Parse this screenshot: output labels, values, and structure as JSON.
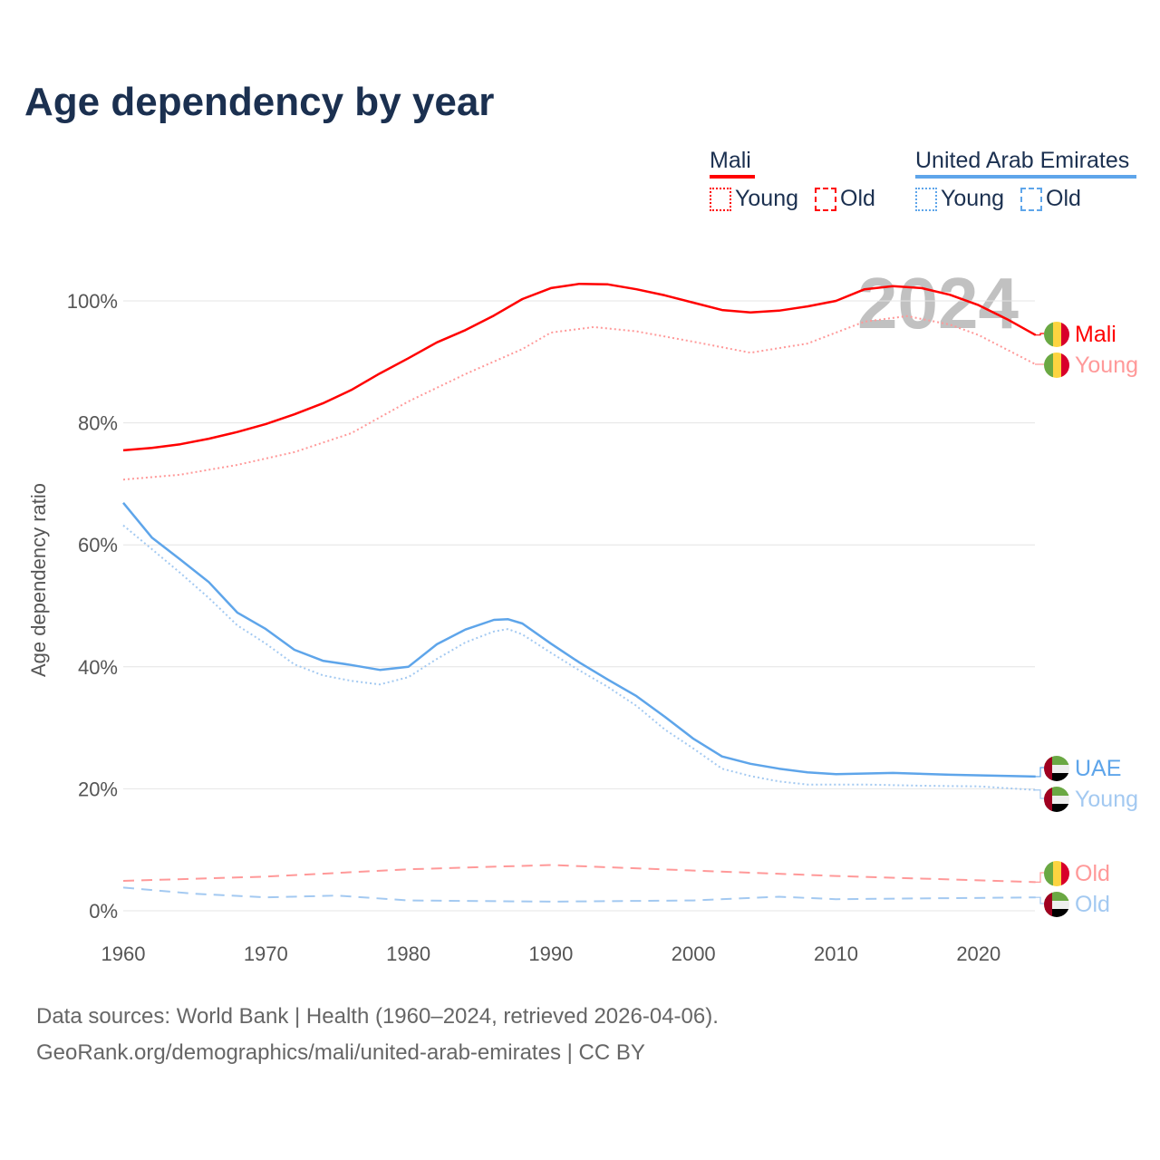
{
  "title": "Age dependency by year",
  "legend": {
    "groups": [
      {
        "name": "Mali",
        "color": "#ff0000",
        "young": "Young",
        "old": "Old"
      },
      {
        "name": "United Arab Emirates",
        "color": "#5ea5ea",
        "young": "Young",
        "old": "Old"
      }
    ]
  },
  "year_watermark": "2024",
  "end_labels": {
    "mali_total": "Mali",
    "mali_young": "Young",
    "mali_old": "Old",
    "uae_total": "UAE",
    "uae_young": "Young",
    "uae_old": "Old"
  },
  "sources": {
    "line1": "Data sources: World Bank | Health (1960–2024, retrieved 2026-04-06).",
    "line2": "GeoRank.org/demographics/mali/united-arab-emirates | CC BY"
  },
  "chart_data": {
    "type": "line",
    "title": "Age dependency by year",
    "xlabel": "",
    "ylabel": "Age dependency ratio",
    "xlim": [
      1960,
      2024
    ],
    "ylim": [
      0,
      110
    ],
    "xticks": [
      "1960",
      "1970",
      "1980",
      "1990",
      "2000",
      "2010",
      "2020"
    ],
    "yticks": [
      "0%",
      "20%",
      "40%",
      "60%",
      "80%",
      "100%"
    ],
    "grid": true,
    "series": [
      {
        "name": "Mali",
        "style": "solid",
        "color": "#ff0000",
        "x": [
          1960,
          1962,
          1964,
          1966,
          1968,
          1970,
          1972,
          1974,
          1976,
          1978,
          1980,
          1982,
          1984,
          1986,
          1988,
          1990,
          1992,
          1994,
          1996,
          1998,
          2000,
          2002,
          2004,
          2006,
          2008,
          2010,
          2012,
          2014,
          2016,
          2018,
          2020,
          2022,
          2024
        ],
        "y": [
          75.5,
          75.9,
          76.5,
          77.4,
          78.5,
          79.8,
          81.4,
          83.2,
          85.4,
          88.1,
          90.6,
          93.2,
          95.2,
          97.6,
          100.3,
          102.1,
          102.8,
          102.7,
          101.9,
          100.9,
          99.7,
          98.5,
          98.1,
          98.4,
          99.1,
          100.0,
          101.9,
          102.4,
          102.1,
          101.0,
          99.3,
          97.0,
          94.4
        ]
      },
      {
        "name": "Mali Young",
        "style": "dotted",
        "color": "#ff9999",
        "x": [
          1960,
          1964,
          1968,
          1972,
          1976,
          1980,
          1984,
          1988,
          1990,
          1993,
          1996,
          2000,
          2004,
          2008,
          2012,
          2015,
          2018,
          2020,
          2024
        ],
        "y": [
          70.7,
          71.5,
          73.1,
          75.2,
          78.3,
          83.5,
          88.0,
          92.1,
          94.8,
          95.7,
          95.0,
          93.3,
          91.5,
          93.0,
          96.6,
          97.5,
          96.1,
          94.4,
          89.6
        ]
      },
      {
        "name": "Mali Old",
        "style": "dashed",
        "color": "#ff9999",
        "x": [
          1960,
          1970,
          1980,
          1990,
          2000,
          2010,
          2020,
          2024
        ],
        "y": [
          4.9,
          5.6,
          6.8,
          7.5,
          6.6,
          5.7,
          5.0,
          4.7
        ]
      },
      {
        "name": "UAE",
        "style": "solid",
        "color": "#5ea5ea",
        "x": [
          1960,
          1962,
          1964,
          1966,
          1968,
          1970,
          1972,
          1974,
          1976,
          1978,
          1980,
          1982,
          1984,
          1986,
          1987,
          1988,
          1990,
          1992,
          1994,
          1996,
          1998,
          2000,
          2002,
          2004,
          2006,
          2008,
          2010,
          2014,
          2018,
          2024
        ],
        "y": [
          66.9,
          61.2,
          57.6,
          53.9,
          48.9,
          46.2,
          42.8,
          41.0,
          40.3,
          39.5,
          40.0,
          43.7,
          46.1,
          47.7,
          47.8,
          47.1,
          43.8,
          40.7,
          37.9,
          35.2,
          31.8,
          28.2,
          25.3,
          24.1,
          23.3,
          22.7,
          22.4,
          22.6,
          22.3,
          22.0
        ]
      },
      {
        "name": "UAE Young",
        "style": "dotted",
        "color": "#a3c9f1",
        "x": [
          1960,
          1962,
          1964,
          1966,
          1968,
          1970,
          1972,
          1974,
          1976,
          1978,
          1980,
          1982,
          1984,
          1986,
          1987,
          1988,
          1990,
          1992,
          1994,
          1996,
          1998,
          2000,
          2002,
          2004,
          2006,
          2008,
          2012,
          2016,
          2020,
          2024
        ],
        "y": [
          63.2,
          59.3,
          55.4,
          51.3,
          46.8,
          43.8,
          40.4,
          38.6,
          37.7,
          37.1,
          38.3,
          41.3,
          44.0,
          45.8,
          46.2,
          45.3,
          42.3,
          39.4,
          36.7,
          33.6,
          29.7,
          26.6,
          23.3,
          22.1,
          21.2,
          20.7,
          20.7,
          20.5,
          20.4,
          19.8
        ]
      },
      {
        "name": "UAE Old",
        "style": "dashed",
        "color": "#a3c9f1",
        "x": [
          1960,
          1965,
          1970,
          1975,
          1980,
          1990,
          2000,
          2006,
          2010,
          2024
        ],
        "y": [
          3.8,
          2.8,
          2.2,
          2.5,
          1.7,
          1.5,
          1.7,
          2.3,
          1.9,
          2.2
        ]
      }
    ]
  }
}
